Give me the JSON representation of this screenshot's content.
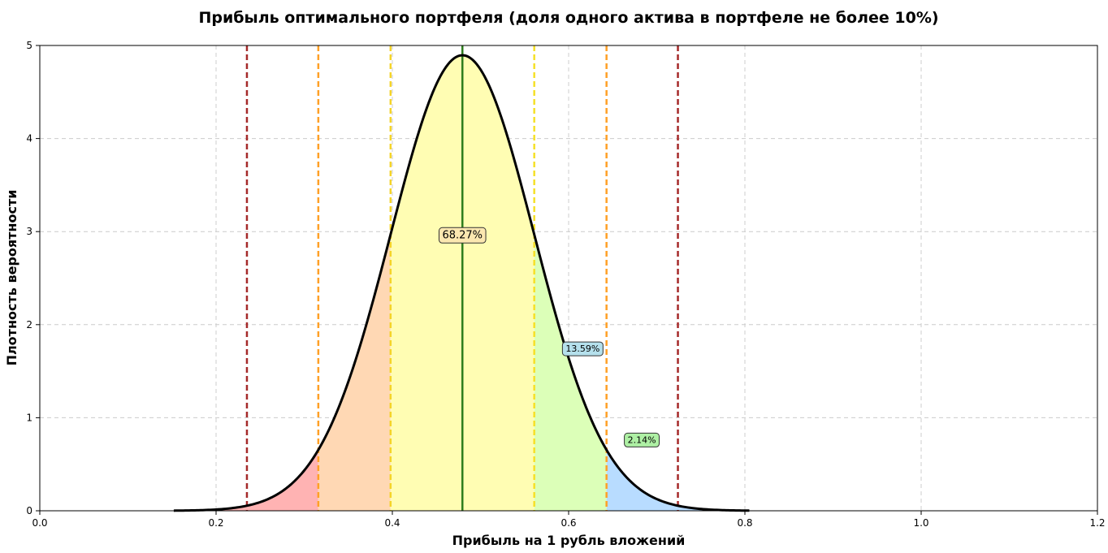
{
  "chart_data": {
    "type": "area",
    "title": "Прибыль оптимального портфеля (доля одного актива в портфеле не более 10%)",
    "xlabel": "Прибыль на 1 рубль вложений",
    "ylabel": "Плотность вероятности",
    "xlim": [
      0.0,
      1.2
    ],
    "ylim": [
      0,
      5
    ],
    "x_ticks": [
      "0.0",
      "0.2",
      "0.4",
      "0.6",
      "0.8",
      "1.0",
      "1.2"
    ],
    "y_ticks": [
      "0",
      "1",
      "2",
      "3",
      "4",
      "5"
    ],
    "grid": true,
    "distribution": {
      "mean": 0.4795,
      "std": 0.0815,
      "x_start": 0.152,
      "x_end": 0.805
    },
    "curve_color": "#000000",
    "mean_line_color": "#2e7d1e",
    "regions": [
      {
        "from": 0.152,
        "to": 0.316,
        "color": "#ffb3b3"
      },
      {
        "from": 0.316,
        "to": 0.398,
        "color": "#ffd8b4"
      },
      {
        "from": 0.398,
        "to": 0.561,
        "color": "#fffdb3"
      },
      {
        "from": 0.561,
        "to": 0.643,
        "color": "#dcffb8"
      },
      {
        "from": 0.643,
        "to": 0.805,
        "color": "#b8dcff"
      }
    ],
    "sigma_lines": [
      {
        "x": 0.235,
        "color": "#a52a2a"
      },
      {
        "x": 0.316,
        "color": "#ffa026"
      },
      {
        "x": 0.398,
        "color": "#f5d428"
      },
      {
        "x": 0.561,
        "color": "#f5e028"
      },
      {
        "x": 0.643,
        "color": "#ffa026"
      },
      {
        "x": 0.724,
        "color": "#a52a2a"
      }
    ],
    "annotations": [
      {
        "text": "68.27%",
        "x": 0.4795,
        "y": 2.96,
        "bg": "#fbe7b0",
        "font_size": 13
      },
      {
        "text": "13.59%",
        "x": 0.616,
        "y": 1.74,
        "bg": "#b5e0ec",
        "font_size": 11
      },
      {
        "text": "2.14%",
        "x": 0.683,
        "y": 0.76,
        "bg": "#aef0a4",
        "font_size": 11
      }
    ]
  }
}
